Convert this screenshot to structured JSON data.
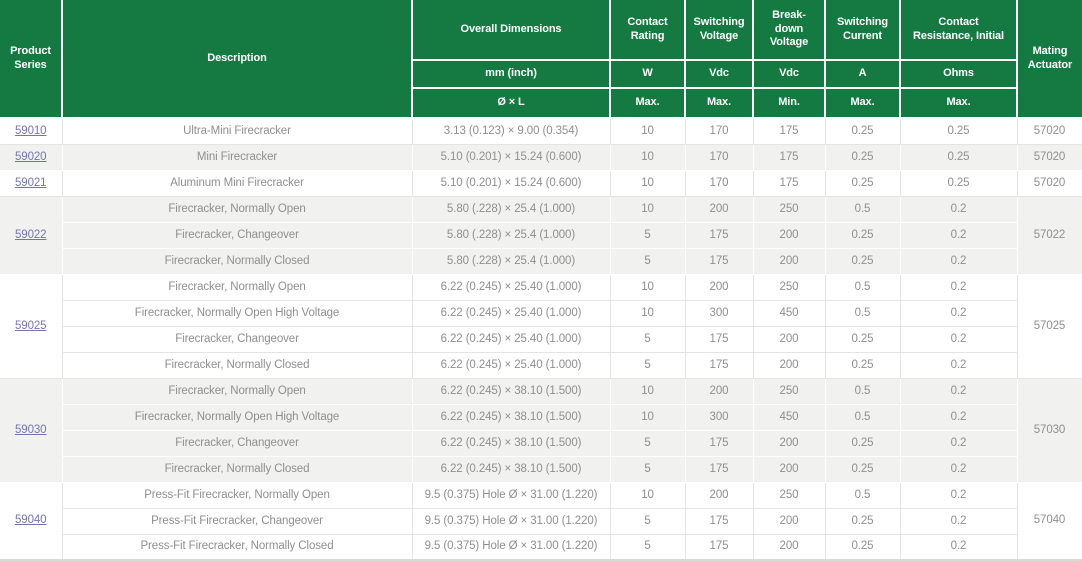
{
  "table": {
    "header": {
      "product_series": "Product\nSeries",
      "description": "Description",
      "overall_dimensions": "Overall Dimensions",
      "dim_unit": "mm (inch)",
      "dim_format": "Ø × L",
      "columns": [
        {
          "label": "Contact\nRating",
          "unit": "W",
          "limit": "Max."
        },
        {
          "label": "Switching\nVoltage",
          "unit": "Vdc",
          "limit": "Max."
        },
        {
          "label": "Break-\ndown\nVoltage",
          "unit": "Vdc",
          "limit": "Min."
        },
        {
          "label": "Switching\nCurrent",
          "unit": "A",
          "limit": "Max."
        },
        {
          "label": "Contact\nResistance, Initial",
          "unit": "Ohms",
          "limit": "Max."
        }
      ],
      "mating_actuator": "Mating\nActuator"
    },
    "groups": [
      {
        "series": "59010",
        "mating_actuator": "57020",
        "rows": [
          {
            "description": "Ultra-Mini Firecracker",
            "dimensions": "3.13 (0.123) × 9.00 (0.354)",
            "contact_rating_w": "10",
            "switching_voltage_vdc": "170",
            "breakdown_voltage_vdc": "175",
            "switching_current_a": "0.25",
            "contact_resistance_ohms": "0.25"
          }
        ]
      },
      {
        "series": "59020",
        "mating_actuator": "57020",
        "rows": [
          {
            "description": "Mini Firecracker",
            "dimensions": "5.10 (0.201) × 15.24 (0.600)",
            "contact_rating_w": "10",
            "switching_voltage_vdc": "170",
            "breakdown_voltage_vdc": "175",
            "switching_current_a": "0.25",
            "contact_resistance_ohms": "0.25"
          }
        ]
      },
      {
        "series": "59021",
        "mating_actuator": "57020",
        "rows": [
          {
            "description": "Aluminum Mini Firecracker",
            "dimensions": "5.10 (0.201) × 15.24 (0.600)",
            "contact_rating_w": "10",
            "switching_voltage_vdc": "170",
            "breakdown_voltage_vdc": "175",
            "switching_current_a": "0.25",
            "contact_resistance_ohms": "0.25"
          }
        ]
      },
      {
        "series": "59022",
        "mating_actuator": "57022",
        "rows": [
          {
            "description": "Firecracker, Normally Open",
            "dimensions": "5.80 (.228) × 25.4 (1.000)",
            "contact_rating_w": "10",
            "switching_voltage_vdc": "200",
            "breakdown_voltage_vdc": "250",
            "switching_current_a": "0.5",
            "contact_resistance_ohms": "0.2"
          },
          {
            "description": "Firecracker, Changeover",
            "dimensions": "5.80 (.228) × 25.4 (1.000)",
            "contact_rating_w": "5",
            "switching_voltage_vdc": "175",
            "breakdown_voltage_vdc": "200",
            "switching_current_a": "0.25",
            "contact_resistance_ohms": "0.2"
          },
          {
            "description": "Firecracker, Normally Closed",
            "dimensions": "5.80 (.228) × 25.4 (1.000)",
            "contact_rating_w": "5",
            "switching_voltage_vdc": "175",
            "breakdown_voltage_vdc": "200",
            "switching_current_a": "0.25",
            "contact_resistance_ohms": "0.2"
          }
        ]
      },
      {
        "series": "59025",
        "mating_actuator": "57025",
        "rows": [
          {
            "description": "Firecracker, Normally Open",
            "dimensions": "6.22 (0.245) × 25.40 (1.000)",
            "contact_rating_w": "10",
            "switching_voltage_vdc": "200",
            "breakdown_voltage_vdc": "250",
            "switching_current_a": "0.5",
            "contact_resistance_ohms": "0.2"
          },
          {
            "description": "Firecracker, Normally Open High Voltage",
            "dimensions": "6.22 (0.245) × 25.40 (1.000)",
            "contact_rating_w": "10",
            "switching_voltage_vdc": "300",
            "breakdown_voltage_vdc": "450",
            "switching_current_a": "0.5",
            "contact_resistance_ohms": "0.2"
          },
          {
            "description": "Firecracker, Changeover",
            "dimensions": "6.22 (0.245) × 25.40 (1.000)",
            "contact_rating_w": "5",
            "switching_voltage_vdc": "175",
            "breakdown_voltage_vdc": "200",
            "switching_current_a": "0.25",
            "contact_resistance_ohms": "0.2"
          },
          {
            "description": "Firecracker, Normally Closed",
            "dimensions": "6.22 (0.245) × 25.40 (1.000)",
            "contact_rating_w": "5",
            "switching_voltage_vdc": "175",
            "breakdown_voltage_vdc": "200",
            "switching_current_a": "0.25",
            "contact_resistance_ohms": "0.2"
          }
        ]
      },
      {
        "series": "59030",
        "mating_actuator": "57030",
        "rows": [
          {
            "description": "Firecracker, Normally Open",
            "dimensions": "6.22 (0.245) × 38.10 (1.500)",
            "contact_rating_w": "10",
            "switching_voltage_vdc": "200",
            "breakdown_voltage_vdc": "250",
            "switching_current_a": "0.5",
            "contact_resistance_ohms": "0.2"
          },
          {
            "description": "Firecracker, Normally Open High Voltage",
            "dimensions": "6.22 (0.245) × 38.10 (1.500)",
            "contact_rating_w": "10",
            "switching_voltage_vdc": "300",
            "breakdown_voltage_vdc": "450",
            "switching_current_a": "0.5",
            "contact_resistance_ohms": "0.2"
          },
          {
            "description": "Firecracker, Changeover",
            "dimensions": "6.22 (0.245) × 38.10 (1.500)",
            "contact_rating_w": "5",
            "switching_voltage_vdc": "175",
            "breakdown_voltage_vdc": "200",
            "switching_current_a": "0.25",
            "contact_resistance_ohms": "0.2"
          },
          {
            "description": "Firecracker, Normally Closed",
            "dimensions": "6.22 (0.245) × 38.10 (1.500)",
            "contact_rating_w": "5",
            "switching_voltage_vdc": "175",
            "breakdown_voltage_vdc": "200",
            "switching_current_a": "0.25",
            "contact_resistance_ohms": "0.2"
          }
        ]
      },
      {
        "series": "59040",
        "mating_actuator": "57040",
        "rows": [
          {
            "description": "Press-Fit Firecracker, Normally Open",
            "dimensions": "9.5 (0.375) Hole Ø × 31.00 (1.220)",
            "contact_rating_w": "10",
            "switching_voltage_vdc": "200",
            "breakdown_voltage_vdc": "250",
            "switching_current_a": "0.5",
            "contact_resistance_ohms": "0.2"
          },
          {
            "description": "Press-Fit Firecracker, Changeover",
            "dimensions": "9.5 (0.375) Hole Ø × 31.00 (1.220)",
            "contact_rating_w": "5",
            "switching_voltage_vdc": "175",
            "breakdown_voltage_vdc": "200",
            "switching_current_a": "0.25",
            "contact_resistance_ohms": "0.2"
          },
          {
            "description": "Press-Fit Firecracker, Normally Closed",
            "dimensions": "9.5 (0.375) Hole Ø × 31.00 (1.220)",
            "contact_rating_w": "5",
            "switching_voltage_vdc": "175",
            "breakdown_voltage_vdc": "200",
            "switching_current_a": "0.25",
            "contact_resistance_ohms": "0.2"
          }
        ]
      }
    ],
    "colors": {
      "header_green": "#147a41",
      "link_purple": "#7474b4",
      "row_gray": "#f1f1ef",
      "cell_text_gray": "#8f8f8f"
    }
  }
}
